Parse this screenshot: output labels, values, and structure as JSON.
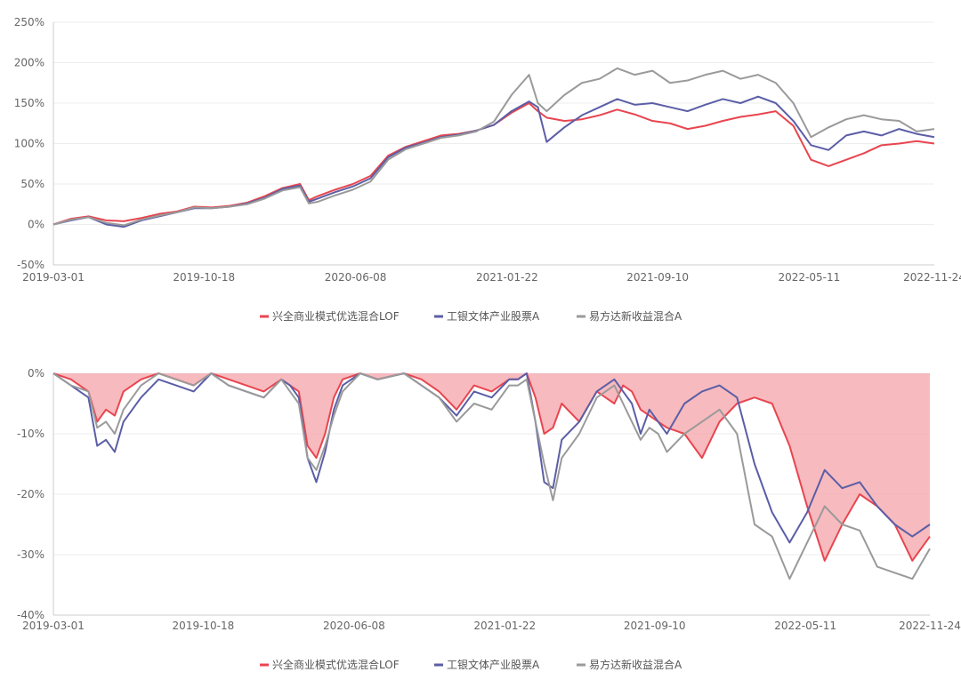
{
  "colors": {
    "fund1": "#e8454f",
    "fund2": "#5b5ea6",
    "fund3": "#9a9a9a",
    "drawdown_fill": "#f4a3a8",
    "grid": "#eeeeee",
    "axis": "#cccccc"
  },
  "chart_data": [
    {
      "type": "line",
      "title": "",
      "ylabel": "",
      "ylim": [
        -50,
        250
      ],
      "y_ticks": [
        -50,
        0,
        50,
        100,
        150,
        200,
        250
      ],
      "y_tick_labels": [
        "-50%",
        "0%",
        "50%",
        "100%",
        "150%",
        "200%",
        "250%"
      ],
      "x_range": [
        0,
        100
      ],
      "x_ticks": [
        0,
        17.1,
        34.3,
        51.5,
        68.6,
        85.8,
        100
      ],
      "x_tick_labels": [
        "2019-03-01",
        "2019-10-18",
        "2020-06-08",
        "2021-01-22",
        "2021-09-10",
        "2022-05-11",
        "2022-11-24"
      ],
      "legend": [
        "兴全商业模式优选混合LOF",
        "工银文体产业股票A",
        "易方达新收益混合A"
      ],
      "series": [
        {
          "name": "兴全商业模式优选混合LOF",
          "x": [
            0,
            2,
            4,
            6,
            8,
            10,
            12,
            14,
            16,
            18,
            20,
            22,
            24,
            26,
            28,
            29,
            30,
            32,
            34,
            36,
            38,
            40,
            42,
            44,
            46,
            48,
            50,
            52,
            54,
            55,
            56,
            58,
            60,
            62,
            64,
            66,
            68,
            70,
            72,
            74,
            76,
            78,
            80,
            82,
            84,
            86,
            88,
            90,
            92,
            94,
            96,
            98,
            100
          ],
          "values": [
            0,
            7,
            10,
            5,
            4,
            8,
            13,
            16,
            22,
            21,
            23,
            27,
            35,
            45,
            50,
            30,
            35,
            43,
            50,
            60,
            85,
            96,
            103,
            110,
            112,
            116,
            123,
            138,
            150,
            140,
            132,
            128,
            130,
            135,
            142,
            136,
            128,
            125,
            118,
            122,
            128,
            133,
            136,
            140,
            122,
            80,
            72,
            80,
            88,
            98,
            100,
            103,
            100
          ]
        },
        {
          "name": "工银文体产业股票A",
          "x": [
            0,
            2,
            4,
            6,
            8,
            10,
            12,
            14,
            16,
            18,
            20,
            22,
            24,
            26,
            28,
            29,
            30,
            32,
            34,
            36,
            38,
            40,
            42,
            44,
            46,
            48,
            50,
            52,
            54,
            55,
            56,
            58,
            60,
            62,
            64,
            66,
            68,
            70,
            72,
            74,
            76,
            78,
            80,
            82,
            84,
            86,
            88,
            90,
            92,
            94,
            96,
            98,
            100
          ],
          "values": [
            0,
            5,
            9,
            0,
            -3,
            5,
            10,
            15,
            20,
            20,
            22,
            26,
            33,
            44,
            48,
            28,
            32,
            40,
            47,
            57,
            83,
            95,
            101,
            108,
            111,
            116,
            123,
            140,
            152,
            145,
            102,
            120,
            135,
            145,
            155,
            148,
            150,
            145,
            140,
            148,
            155,
            150,
            158,
            150,
            128,
            98,
            92,
            110,
            115,
            110,
            118,
            112,
            108
          ]
        },
        {
          "name": "易方达新收益混合A",
          "x": [
            0,
            2,
            4,
            6,
            8,
            10,
            12,
            14,
            16,
            18,
            20,
            22,
            24,
            26,
            28,
            29,
            30,
            32,
            34,
            36,
            38,
            40,
            42,
            44,
            46,
            48,
            50,
            52,
            54,
            55,
            56,
            58,
            60,
            62,
            64,
            66,
            68,
            70,
            72,
            74,
            76,
            78,
            80,
            82,
            84,
            86,
            88,
            90,
            92,
            94,
            96,
            98,
            100
          ],
          "values": [
            0,
            6,
            9,
            2,
            -1,
            6,
            11,
            15,
            21,
            20,
            22,
            25,
            32,
            42,
            46,
            26,
            28,
            36,
            43,
            53,
            80,
            93,
            100,
            107,
            110,
            115,
            127,
            160,
            185,
            150,
            140,
            160,
            175,
            180,
            193,
            185,
            190,
            175,
            178,
            185,
            190,
            180,
            185,
            175,
            150,
            108,
            120,
            130,
            135,
            130,
            128,
            115,
            118
          ]
        }
      ]
    },
    {
      "type": "area",
      "title": "",
      "ylabel": "",
      "ylim": [
        -40,
        0
      ],
      "y_ticks": [
        -40,
        -30,
        -20,
        -10,
        0
      ],
      "y_tick_labels": [
        "-40%",
        "-30%",
        "-20%",
        "-10%",
        "0%"
      ],
      "x_range": [
        0,
        100
      ],
      "x_ticks": [
        0,
        17.1,
        34.3,
        51.5,
        68.6,
        85.8,
        100
      ],
      "x_tick_labels": [
        "2019-03-01",
        "2019-10-18",
        "2020-06-08",
        "2021-01-22",
        "2021-09-10",
        "2022-05-11",
        "2022-11-24"
      ],
      "legend": [
        "兴全商业模式优选混合LOF",
        "工银文体产业股票A",
        "易方达新收益混合A"
      ],
      "series": [
        {
          "name": "兴全商业模式优选混合LOF",
          "fill": true,
          "x": [
            0,
            2,
            4,
            5,
            6,
            7,
            8,
            10,
            12,
            14,
            16,
            18,
            20,
            22,
            24,
            26,
            27,
            28,
            29,
            30,
            31,
            32,
            33,
            35,
            37,
            40,
            42,
            44,
            46,
            48,
            50,
            52,
            53,
            54,
            55,
            56,
            57,
            58,
            60,
            62,
            63,
            64,
            65,
            66,
            67,
            68,
            69,
            70,
            72,
            74,
            76,
            78,
            80,
            82,
            84,
            86,
            88,
            90,
            92,
            94,
            96,
            98,
            100
          ],
          "values": [
            0,
            -1,
            -3,
            -8,
            -6,
            -7,
            -3,
            -1,
            0,
            -1,
            -2,
            0,
            -1,
            -2,
            -3,
            -1,
            -2,
            -3,
            -12,
            -14,
            -10,
            -4,
            -1,
            0,
            -1,
            0,
            -1,
            -3,
            -6,
            -2,
            -3,
            -1,
            -1,
            0,
            -4,
            -10,
            -9,
            -5,
            -8,
            -3,
            -4,
            -5,
            -2,
            -3,
            -6,
            -7,
            -8,
            -9,
            -10,
            -14,
            -8,
            -5,
            -4,
            -5,
            -12,
            -22,
            -31,
            -25,
            -20,
            -22,
            -25,
            -31,
            -27
          ]
        },
        {
          "name": "工银文体产业股票A",
          "fill": false,
          "x": [
            0,
            2,
            4,
            5,
            6,
            7,
            8,
            10,
            12,
            14,
            16,
            18,
            20,
            22,
            24,
            26,
            27,
            28,
            29,
            30,
            31,
            32,
            33,
            35,
            37,
            40,
            42,
            44,
            46,
            48,
            50,
            52,
            53,
            54,
            55,
            56,
            57,
            58,
            60,
            62,
            63,
            64,
            65,
            66,
            67,
            68,
            69,
            70,
            72,
            74,
            76,
            78,
            80,
            82,
            84,
            86,
            88,
            90,
            92,
            94,
            96,
            98,
            100
          ],
          "values": [
            0,
            -2,
            -4,
            -12,
            -11,
            -13,
            -8,
            -4,
            -1,
            -2,
            -3,
            0,
            -2,
            -3,
            -4,
            -1,
            -2,
            -4,
            -14,
            -18,
            -13,
            -6,
            -2,
            0,
            -1,
            0,
            -2,
            -4,
            -7,
            -3,
            -4,
            -1,
            -1,
            0,
            -8,
            -18,
            -19,
            -11,
            -8,
            -3,
            -2,
            -1,
            -3,
            -5,
            -10,
            -6,
            -8,
            -10,
            -5,
            -3,
            -2,
            -4,
            -15,
            -23,
            -28,
            -23,
            -16,
            -19,
            -18,
            -22,
            -25,
            -27,
            -25
          ]
        },
        {
          "name": "易方达新收益混合A",
          "fill": false,
          "x": [
            0,
            2,
            4,
            5,
            6,
            7,
            8,
            10,
            12,
            14,
            16,
            18,
            20,
            22,
            24,
            26,
            27,
            28,
            29,
            30,
            31,
            32,
            33,
            35,
            37,
            40,
            42,
            44,
            46,
            48,
            50,
            52,
            53,
            54,
            55,
            56,
            57,
            58,
            60,
            62,
            63,
            64,
            65,
            66,
            67,
            68,
            69,
            70,
            72,
            74,
            76,
            78,
            80,
            82,
            84,
            86,
            88,
            90,
            92,
            94,
            96,
            98,
            100
          ],
          "values": [
            0,
            -2,
            -3,
            -9,
            -8,
            -10,
            -6,
            -2,
            0,
            -1,
            -2,
            0,
            -2,
            -3,
            -4,
            -1,
            -3,
            -5,
            -14,
            -16,
            -12,
            -7,
            -3,
            0,
            -1,
            0,
            -2,
            -4,
            -8,
            -5,
            -6,
            -2,
            -2,
            -1,
            -8,
            -15,
            -21,
            -14,
            -10,
            -4,
            -3,
            -2,
            -5,
            -8,
            -11,
            -9,
            -10,
            -13,
            -10,
            -8,
            -6,
            -10,
            -25,
            -27,
            -34,
            -28,
            -22,
            -25,
            -26,
            -32,
            -33,
            -34,
            -29
          ]
        }
      ]
    }
  ]
}
